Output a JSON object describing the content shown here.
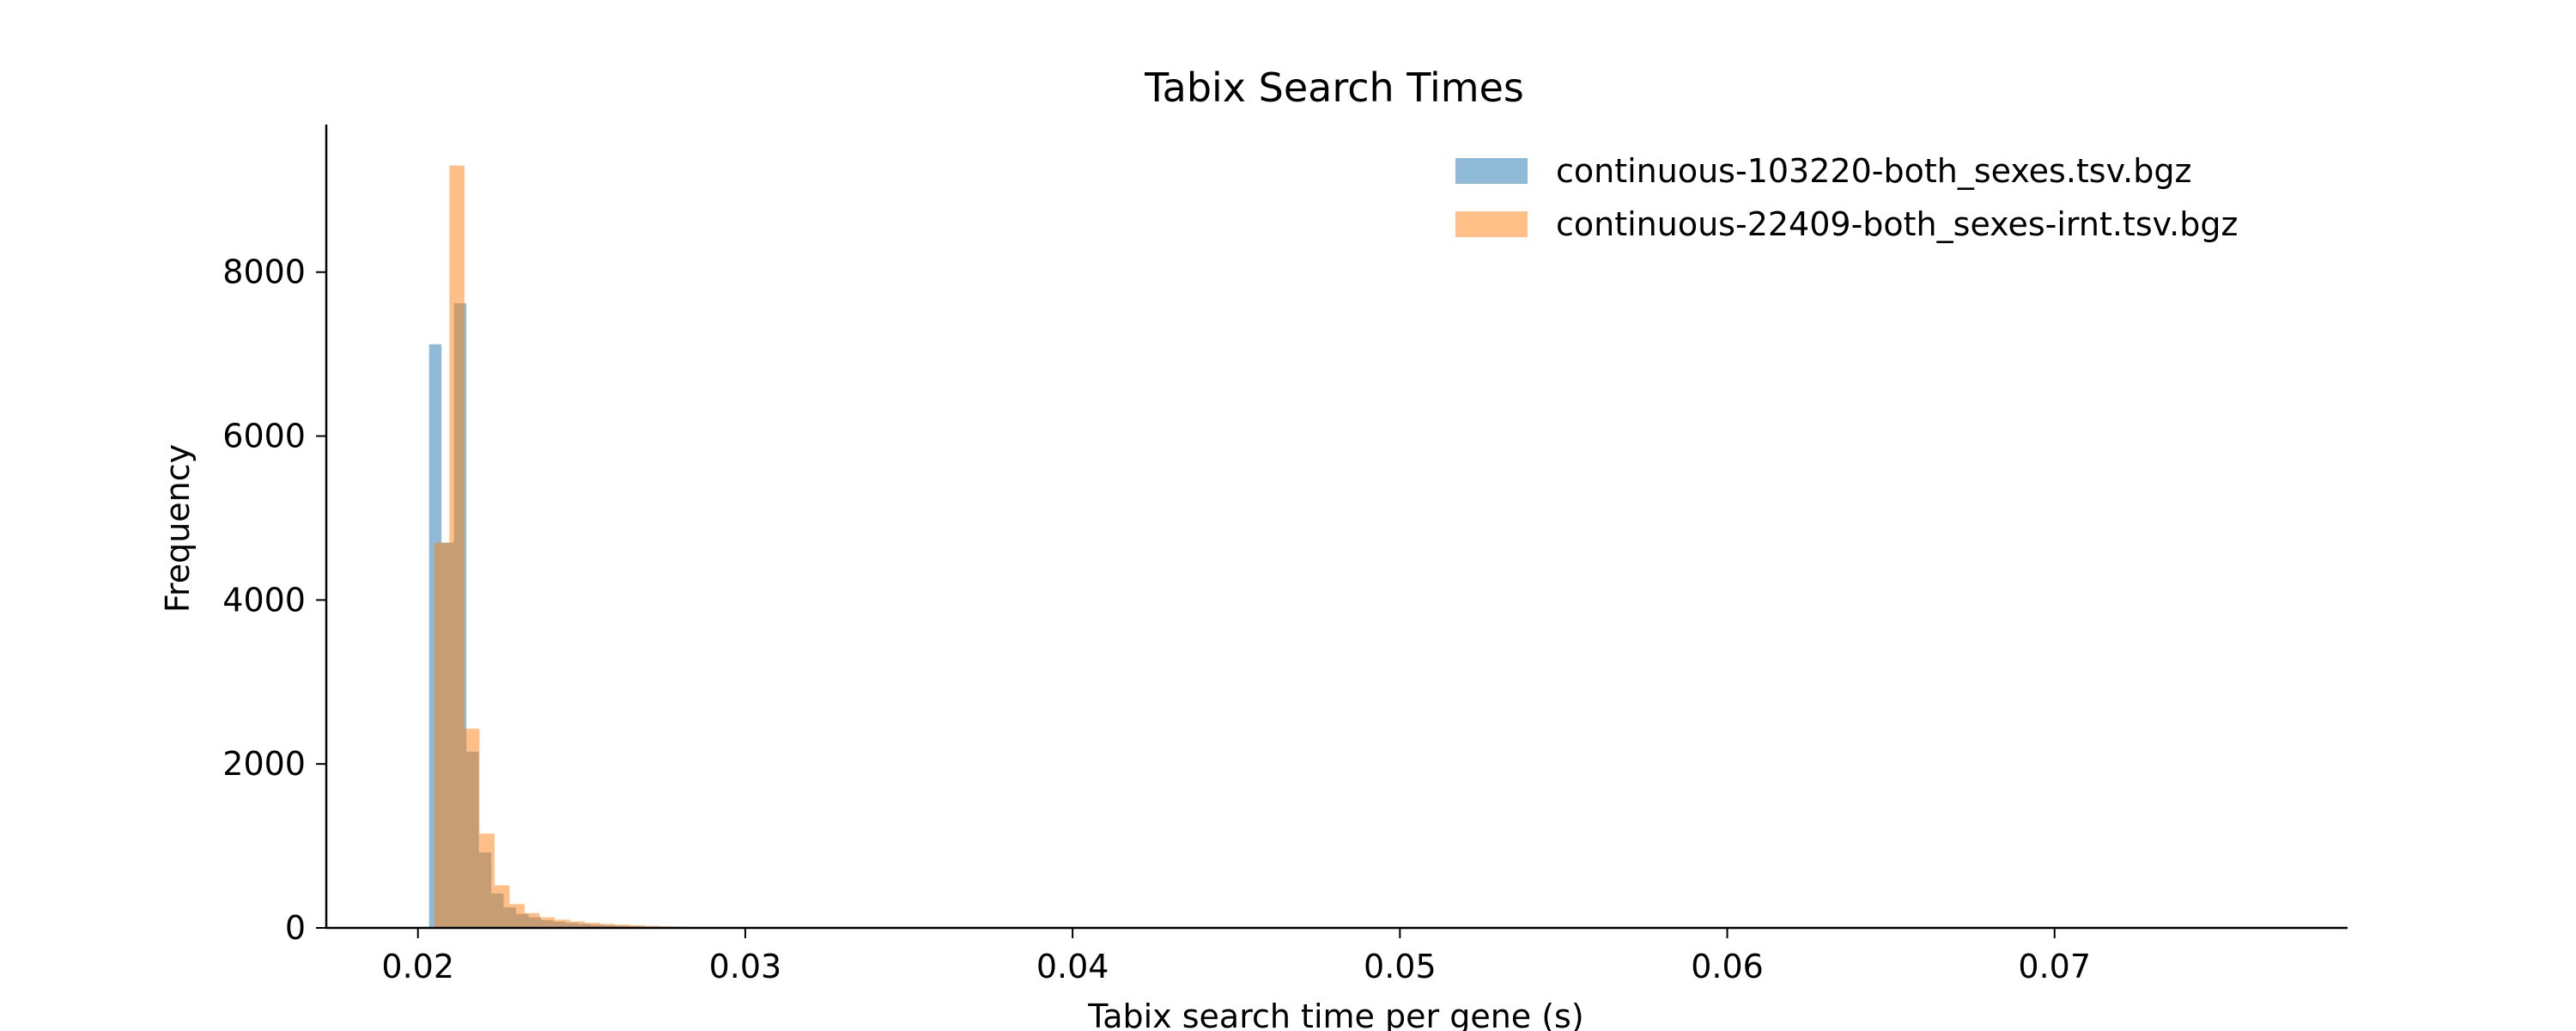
{
  "chart_data": {
    "type": "bar",
    "title": "Tabix Search Times",
    "xlabel": "Tabix search time per gene (s)",
    "ylabel": "Frequency",
    "xlim": [
      0.0172,
      0.0789
    ],
    "ylim": [
      0,
      9800
    ],
    "x_ticks": [
      0.02,
      0.03,
      0.04,
      0.05,
      0.06,
      0.07
    ],
    "x_tick_labels": [
      "0.02",
      "0.03",
      "0.04",
      "0.05",
      "0.06",
      "0.07"
    ],
    "y_ticks": [
      0,
      2000,
      4000,
      6000,
      8000
    ],
    "y_tick_labels": [
      "0",
      "2000",
      "4000",
      "6000",
      "8000"
    ],
    "grid": false,
    "legend_position": "top-right",
    "series": [
      {
        "name": "continuous-103220-both_sexes.tsv.bgz",
        "color": "#1f77b4",
        "opacity": 0.5,
        "bin_width": 0.00038,
        "bin_starts": [
          0.02034,
          0.02072,
          0.0211,
          0.02148,
          0.02186,
          0.02224,
          0.02262,
          0.023,
          0.02338,
          0.02376,
          0.02414,
          0.02452,
          0.0249,
          0.02528,
          0.02566,
          0.02604,
          0.02642,
          0.0268,
          0.02718,
          0.02756,
          0.02794,
          0.02832,
          0.0287,
          0.02908
        ],
        "counts": [
          7120,
          4700,
          7620,
          2150,
          920,
          420,
          250,
          170,
          130,
          95,
          75,
          60,
          48,
          38,
          30,
          24,
          19,
          15,
          12,
          10,
          8,
          6,
          5,
          4
        ]
      },
      {
        "name": "continuous-22409-both_sexes-irnt.tsv.bgz",
        "color": "#ff7f0e",
        "opacity": 0.5,
        "bin_width": 0.00046,
        "bin_starts": [
          0.0205,
          0.02096,
          0.02142,
          0.02188,
          0.02234,
          0.0228,
          0.02326,
          0.02372,
          0.02418,
          0.02464,
          0.0251,
          0.02556,
          0.02602,
          0.02648,
          0.02694,
          0.0274,
          0.02786,
          0.02832,
          0.02878
        ],
        "counts": [
          4700,
          9300,
          2430,
          1150,
          520,
          290,
          180,
          130,
          100,
          80,
          62,
          50,
          40,
          32,
          25,
          19,
          14,
          10,
          7
        ]
      }
    ]
  }
}
